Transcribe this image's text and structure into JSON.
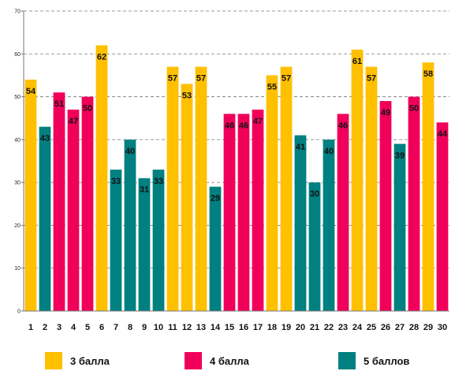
{
  "chart_data": {
    "type": "bar",
    "ylim": [
      0,
      70
    ],
    "yticks": [
      0,
      10,
      20,
      30,
      40,
      50,
      60,
      70
    ],
    "grid": true,
    "legend_position": "bottom",
    "categories": [
      "1",
      "2",
      "3",
      "4",
      "5",
      "6",
      "7",
      "8",
      "9",
      "10",
      "11",
      "12",
      "13",
      "14",
      "15",
      "16",
      "17",
      "18",
      "19",
      "20",
      "21",
      "22",
      "23",
      "24",
      "25",
      "26",
      "27",
      "28",
      "29",
      "30"
    ],
    "values": [
      54,
      43,
      51,
      47,
      50,
      62,
      33,
      40,
      31,
      33,
      57,
      53,
      57,
      29,
      46,
      46,
      47,
      55,
      57,
      41,
      30,
      40,
      46,
      61,
      57,
      49,
      39,
      50,
      58,
      44
    ],
    "bar_series": [
      0,
      2,
      1,
      1,
      1,
      0,
      2,
      2,
      2,
      2,
      0,
      0,
      0,
      2,
      1,
      1,
      1,
      0,
      0,
      2,
      2,
      2,
      1,
      0,
      0,
      1,
      2,
      1,
      0,
      1
    ],
    "series": [
      {
        "name": "3 балла",
        "color": "#FFC000"
      },
      {
        "name": "4 балла",
        "color": "#F0005A"
      },
      {
        "name": "5 баллов",
        "color": "#008080"
      }
    ]
  }
}
